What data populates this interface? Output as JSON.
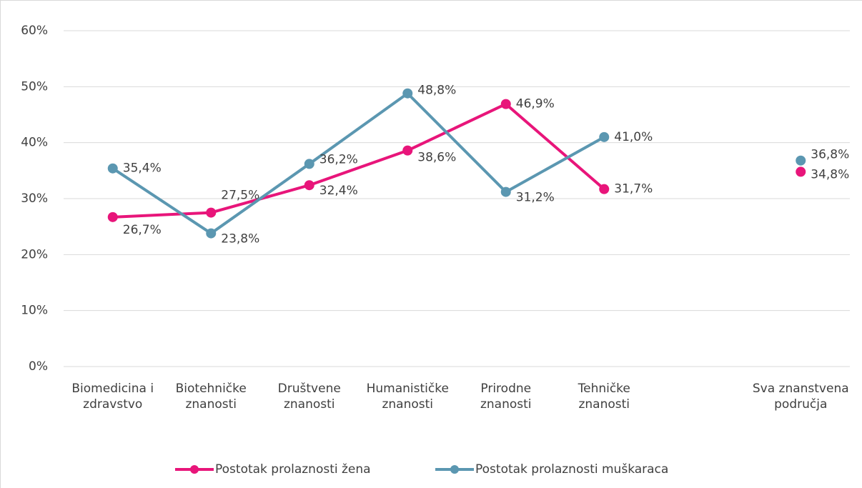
{
  "chart_data": {
    "type": "line",
    "categories": [
      "Biomedicina i zdravstvo",
      "Biotehničke znanosti",
      "Društvene znanosti",
      "Humanističke znanosti",
      "Prirodne znanosti",
      "Tehničke znanosti",
      null,
      "Sva znanstvena područja"
    ],
    "series": [
      {
        "name": "Postotak prolaznosti žena",
        "color": "#e8157a",
        "values": [
          26.7,
          27.5,
          32.4,
          38.6,
          46.9,
          31.7,
          null,
          34.8
        ],
        "value_labels": [
          "26,7%",
          "27,5%",
          "32,4%",
          "38,6%",
          "46,9%",
          "31,7%",
          null,
          "34,8%"
        ]
      },
      {
        "name": "Postotak prolaznosti muškaraca",
        "color": "#5b97b1",
        "values": [
          35.4,
          23.8,
          36.2,
          48.8,
          31.2,
          41.0,
          null,
          36.8
        ],
        "value_labels": [
          "35,4%",
          "23,8%",
          "36,2%",
          "48,8%",
          "31,2%",
          "41,0%",
          null,
          "36,8%"
        ]
      }
    ],
    "ylim": [
      0,
      60
    ],
    "yticks": [
      {
        "value": 0,
        "label": "0%"
      },
      {
        "value": 10,
        "label": "10%"
      },
      {
        "value": 20,
        "label": "20%"
      },
      {
        "value": 30,
        "label": "30%"
      },
      {
        "value": 40,
        "label": "40%"
      },
      {
        "value": 50,
        "label": "50%"
      },
      {
        "value": 60,
        "label": "60%"
      }
    ],
    "grid": true,
    "legend": "bottom"
  }
}
